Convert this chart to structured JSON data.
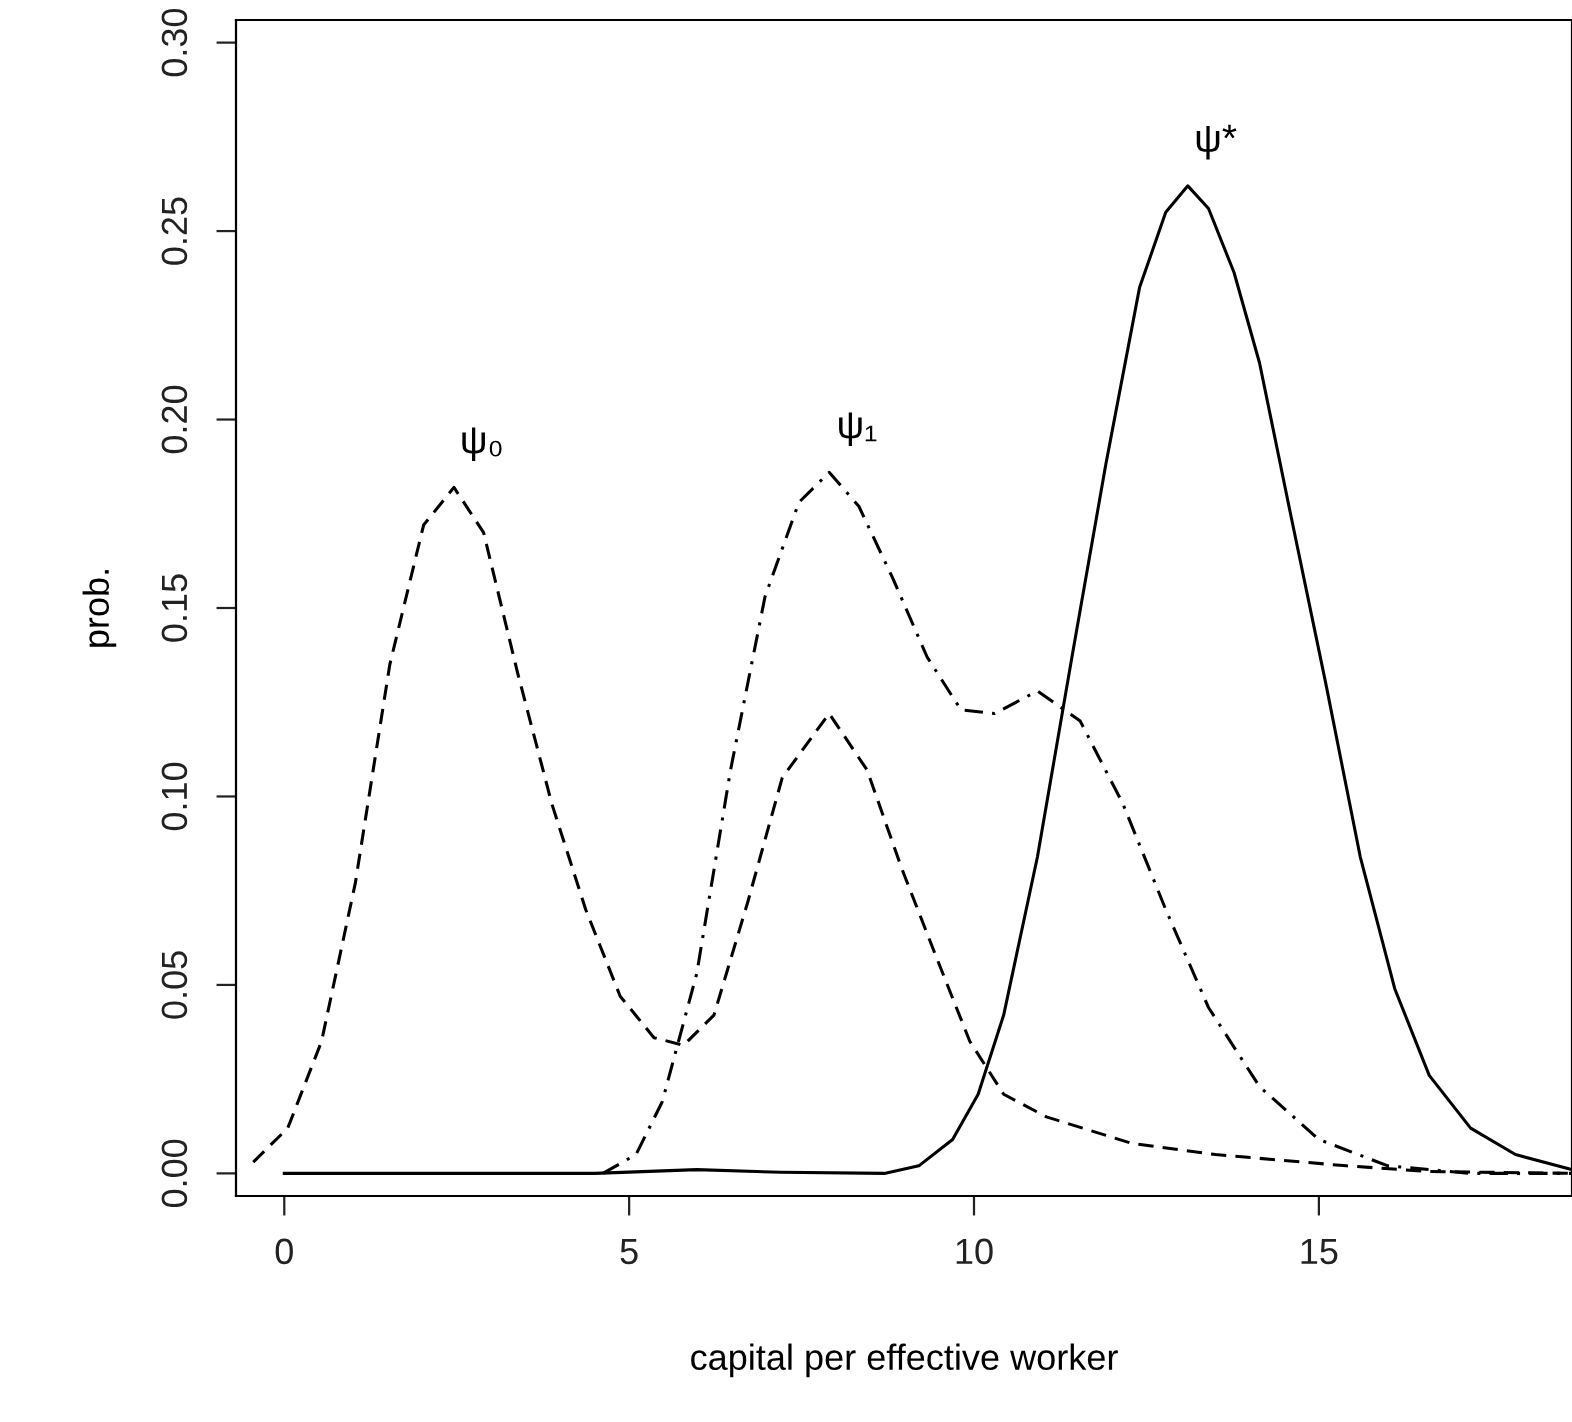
{
  "chart_data": {
    "type": "line",
    "xlabel": "capital per effective worker",
    "ylabel": "prob.",
    "xlim": [
      -0.7,
      18.67
    ],
    "ylim": [
      -0.006,
      0.306
    ],
    "xticks": [
      0,
      5,
      10,
      15
    ],
    "yticks": [
      {
        "value": 0,
        "label": "0.00"
      },
      {
        "value": 0.05,
        "label": "0.05"
      },
      {
        "value": 0.1,
        "label": "0.10"
      },
      {
        "value": 0.15,
        "label": "0.15"
      },
      {
        "value": 0.2,
        "label": "0.20"
      },
      {
        "value": 0.25,
        "label": "0.25"
      },
      {
        "value": 0.3,
        "label": "0.30"
      }
    ],
    "grid": false,
    "legend": false,
    "marker": "none",
    "series": [
      {
        "name": "ψ₀",
        "color": "#000000",
        "line_style": "dashed",
        "x": [
          -0.45,
          0.05,
          0.54,
          1.03,
          1.53,
          2.02,
          2.46,
          2.89,
          3.38,
          3.88,
          4.37,
          4.87,
          5.36,
          5.79,
          6.23,
          6.72,
          7.22,
          7.9,
          8.45,
          8.95,
          9.44,
          9.94,
          10.43,
          11.05,
          12.28,
          13.5,
          15.4,
          16.6,
          18.67
        ],
        "values": [
          0.003,
          0.012,
          0.035,
          0.077,
          0.135,
          0.172,
          0.182,
          0.17,
          0.133,
          0.098,
          0.07,
          0.047,
          0.036,
          0.034,
          0.042,
          0.072,
          0.105,
          0.122,
          0.107,
          0.081,
          0.058,
          0.035,
          0.021,
          0.015,
          0.008,
          0.005,
          0.002,
          0.0005,
          0
        ]
      },
      {
        "name": "ψ₁",
        "color": "#000000",
        "line_style": "dashdot",
        "x": [
          4.62,
          5.1,
          5.48,
          5.98,
          6.47,
          6.97,
          7.46,
          7.9,
          8.33,
          8.82,
          9.32,
          9.81,
          10.3,
          10.92,
          11.54,
          12.16,
          12.78,
          13.4,
          14.14,
          15.0,
          16.0,
          17.2,
          18.67
        ],
        "values": [
          0,
          0.005,
          0.019,
          0.053,
          0.107,
          0.153,
          0.178,
          0.186,
          0.177,
          0.158,
          0.137,
          0.123,
          0.122,
          0.128,
          0.12,
          0.098,
          0.07,
          0.044,
          0.023,
          0.009,
          0.002,
          0,
          0
        ]
      },
      {
        "name": "ψ*",
        "color": "#000000",
        "line_style": "solid",
        "x": [
          0,
          4.5,
          5.98,
          7.2,
          8.7,
          9.2,
          9.69,
          10.06,
          10.43,
          10.92,
          11.42,
          11.91,
          12.4,
          12.78,
          13.1,
          13.4,
          13.77,
          14.14,
          14.6,
          15.1,
          15.6,
          16.1,
          16.6,
          17.2,
          17.85,
          18.67
        ],
        "values": [
          0,
          0,
          0.001,
          0.0003,
          0,
          0.002,
          0.009,
          0.021,
          0.042,
          0.084,
          0.137,
          0.188,
          0.235,
          0.255,
          0.262,
          0.256,
          0.239,
          0.215,
          0.174,
          0.13,
          0.084,
          0.049,
          0.026,
          0.012,
          0.005,
          0.001
        ]
      }
    ]
  }
}
